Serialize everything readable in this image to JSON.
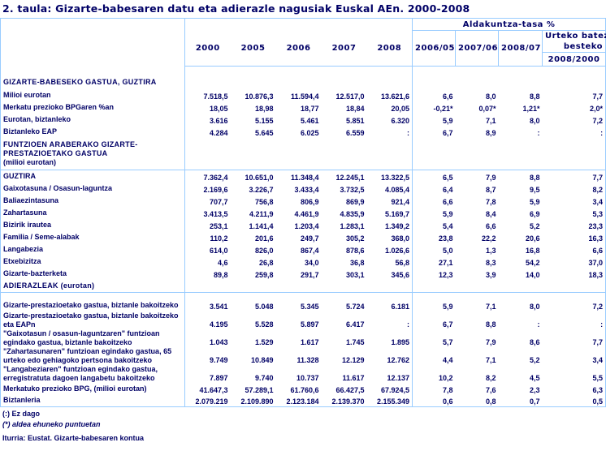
{
  "title": "2. taula: Gizarte-babesaren datu eta adierazle nagusiak Euskal AEn. 2000-2008",
  "header": {
    "group_label": "Aldakuntza-tasa %",
    "years": [
      "2000",
      "2005",
      "2006",
      "2007",
      "2008"
    ],
    "rates": [
      "2006/05",
      "2007/06",
      "2008/07"
    ],
    "annual_label_1": "Urteko batez",
    "annual_label_2": "besteko",
    "annual_period": "2008/2000"
  },
  "sections": [
    {
      "title": "GIZARTE-BABESEKO GASTUA, GUZTIRA",
      "rows": [
        {
          "label": "Milioi eurotan",
          "v": [
            "7.518,5",
            "10.876,3",
            "11.594,4",
            "12.517,0",
            "13.621,6",
            "6,6",
            "8,0",
            "8,8",
            "7,7"
          ]
        },
        {
          "label": "Merkatu prezioko BPGaren %an",
          "v": [
            "18,05",
            "18,98",
            "18,77",
            "18,84",
            "20,05",
            "-0,21*",
            "0,07*",
            "1,21*",
            "2,0*"
          ]
        },
        {
          "label": "Eurotan, biztanleko",
          "v": [
            "3.616",
            "5.155",
            "5.461",
            "5.851",
            "6.320",
            "5,9",
            "7,1",
            "8,0",
            "7,2"
          ]
        },
        {
          "label": "Biztanleko EAP",
          "v": [
            "4.284",
            "5.645",
            "6.025",
            "6.559",
            ":",
            "6,7",
            "8,9",
            ":",
            ":"
          ]
        }
      ]
    },
    {
      "title": "FUNTZIOEN ARABERAKO GIZARTE-PRESTAZIOETAKO GASTUA",
      "subtitle": "(milioi eurotan)",
      "rows": [
        {
          "label": "GUZTIRA",
          "v": [
            "7.362,4",
            "10.651,0",
            "11.348,4",
            "12.245,1",
            "13.322,5",
            "6,5",
            "7,9",
            "8,8",
            "7,7"
          ]
        },
        {
          "label": "Gaixotasuna / Osasun-laguntza",
          "v": [
            "2.169,6",
            "3.226,7",
            "3.433,4",
            "3.732,5",
            "4.085,4",
            "6,4",
            "8,7",
            "9,5",
            "8,2"
          ]
        },
        {
          "label": "Baliaezintasuna",
          "v": [
            "707,7",
            "756,8",
            "806,9",
            "869,9",
            "921,4",
            "6,6",
            "7,8",
            "5,9",
            "3,4"
          ]
        },
        {
          "label": "Zahartasuna",
          "v": [
            "3.413,5",
            "4.211,9",
            "4.461,9",
            "4.835,9",
            "5.169,7",
            "5,9",
            "8,4",
            "6,9",
            "5,3"
          ]
        },
        {
          "label": "Bizirik irautea",
          "v": [
            "253,1",
            "1.141,4",
            "1.203,4",
            "1.283,1",
            "1.349,2",
            "5,4",
            "6,6",
            "5,2",
            "23,3"
          ]
        },
        {
          "label": "Familia / Seme-alabak",
          "v": [
            "110,2",
            "201,6",
            "249,7",
            "305,2",
            "368,0",
            "23,8",
            "22,2",
            "20,6",
            "16,3"
          ]
        },
        {
          "label": "Langabezia",
          "v": [
            "614,0",
            "826,0",
            "867,4",
            "878,6",
            "1.026,6",
            "5,0",
            "1,3",
            "16,8",
            "6,6"
          ]
        },
        {
          "label": "Etxebizitza",
          "v": [
            "4,6",
            "26,8",
            "34,0",
            "36,8",
            "56,8",
            "27,1",
            "8,3",
            "54,2",
            "37,0"
          ]
        },
        {
          "label": "Gizarte-bazterketa",
          "v": [
            "89,8",
            "259,8",
            "291,7",
            "303,1",
            "345,6",
            "12,3",
            "3,9",
            "14,0",
            "18,3"
          ]
        }
      ]
    },
    {
      "title": "ADIERAZLEAK (eurotan)",
      "rows": [
        {
          "label": "Gizarte-prestazioetako gastua, biztanle bakoitzeko",
          "v": [
            "3.541",
            "5.048",
            "5.345",
            "5.724",
            "6.181",
            "5,9",
            "7,1",
            "8,0",
            "7,2"
          ]
        },
        {
          "label": "Gizarte-prestazioetako gastua, biztanle bakoitzeko eta EAPn",
          "v": [
            "4.195",
            "5.528",
            "5.897",
            "6.417",
            ":",
            "6,7",
            "8,8",
            ":",
            ":"
          ]
        },
        {
          "label": "\"Gaixotasun / osasun-laguntzaren\" funtzioan egindako gastua, biztanle bakoitzeko",
          "v": [
            "1.043",
            "1.529",
            "1.617",
            "1.745",
            "1.895",
            "5,7",
            "7,9",
            "8,6",
            "7,7"
          ]
        },
        {
          "label": "\"Zahartasunaren\" funtzioan egindako gastua, 65 urteko edo gehiagoko pertsona bakoitzeko",
          "v": [
            "9.749",
            "10.849",
            "11.328",
            "12.129",
            "12.762",
            "4,4",
            "7,1",
            "5,2",
            "3,4"
          ]
        },
        {
          "label": "\"Langabeziaren\" funtzioan egindako gastua, erregistratuta dagoen langabetu bakoitzeko",
          "v": [
            "7.897",
            "9.740",
            "10.737",
            "11.617",
            "12.137",
            "10,2",
            "8,2",
            "4,5",
            "5,5"
          ]
        },
        {
          "label": "Merkatuko prezioko BPG, (milioi eurotan)",
          "v": [
            "41.647,3",
            "57.289,1",
            "61.760,6",
            "66.427,5",
            "67.924,5",
            "7,8",
            "7,6",
            "2,3",
            "6,3"
          ]
        },
        {
          "label": "Biztanleria",
          "v": [
            "2.079.219",
            "2.109.890",
            "2.123.184",
            "2.139.370",
            "2.155.349",
            "0,6",
            "0,8",
            "0,7",
            "0,5"
          ]
        }
      ]
    }
  ],
  "notes": {
    "missing": "(:) Ez dago",
    "points": "(*) aldea ehuneko puntuetan",
    "source": "Iturria: Eustat. Gizarte-babesaren kontua"
  }
}
